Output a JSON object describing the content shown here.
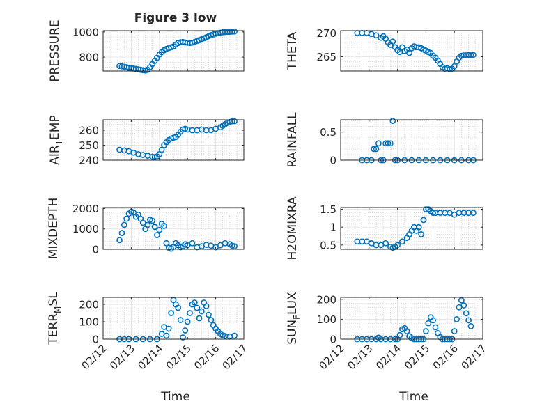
{
  "figure": {
    "title": "Figure 3 low",
    "x_label": "Time"
  },
  "style": {
    "marker_color": "#0072BD",
    "axis_color": "#262626",
    "grid_color": "#bdbdbd"
  },
  "chart_data": [
    {
      "id": "pressure",
      "type": "scatter",
      "title": "Figure 3 low",
      "xlabel": "",
      "ylabel": "PRESSURE",
      "xlim": [
        "02/12",
        "02/17"
      ],
      "ylim": [
        690,
        1010
      ],
      "yticks": [
        800,
        1000
      ],
      "ytick_labels": [
        "800",
        "1000"
      ],
      "x": [
        "02/12 14:00",
        "02/12 16:00",
        "02/12 18:00",
        "02/12 20:00",
        "02/12 22:00",
        "02/13 00:00",
        "02/13 02:00",
        "02/13 04:00",
        "02/13 06:00",
        "02/13 08:00",
        "02/13 10:00",
        "02/13 12:00",
        "02/13 14:00",
        "02/13 16:00",
        "02/13 18:00",
        "02/13 20:00",
        "02/13 22:00",
        "02/14 00:00",
        "02/14 02:00",
        "02/14 04:00",
        "02/14 06:00",
        "02/14 08:00",
        "02/14 10:00",
        "02/14 12:00",
        "02/14 14:00",
        "02/14 16:00",
        "02/14 18:00",
        "02/14 20:00",
        "02/14 22:00",
        "02/15 00:00",
        "02/15 02:00",
        "02/15 04:00",
        "02/15 06:00",
        "02/15 08:00",
        "02/15 10:00",
        "02/15 12:00",
        "02/15 14:00",
        "02/15 16:00",
        "02/15 18:00",
        "02/15 20:00",
        "02/15 22:00",
        "02/16 00:00",
        "02/16 02:00",
        "02/16 04:00",
        "02/16 06:00",
        "02/16 08:00",
        "02/16 10:00",
        "02/16 12:00",
        "02/16 14:00",
        "02/16 16:00"
      ],
      "y": [
        730,
        727,
        724,
        720,
        716,
        713,
        710,
        707,
        704,
        700,
        697,
        694,
        700,
        720,
        745,
        770,
        795,
        820,
        840,
        855,
        865,
        872,
        878,
        885,
        900,
        912,
        918,
        920,
        916,
        914,
        912,
        915,
        920,
        928,
        935,
        942,
        950,
        958,
        966,
        974,
        980,
        986,
        990,
        994,
        997,
        999,
        1000,
        1001,
        1002,
        1003
      ]
    },
    {
      "id": "theta",
      "type": "scatter",
      "xlabel": "",
      "ylabel": "THETA",
      "xlim": [
        "02/12",
        "02/17"
      ],
      "ylim": [
        262,
        270.5
      ],
      "yticks": [
        265,
        270
      ],
      "ytick_labels": [
        "265",
        "270"
      ],
      "x": [
        "02/12 14:00",
        "02/12 18:00",
        "02/12 22:00",
        "02/13 02:00",
        "02/13 06:00",
        "02/13 10:00",
        "02/13 12:00",
        "02/13 14:00",
        "02/13 16:00",
        "02/13 18:00",
        "02/13 20:00",
        "02/13 22:00",
        "02/14 00:00",
        "02/14 02:00",
        "02/14 04:00",
        "02/14 06:00",
        "02/14 08:00",
        "02/14 10:00",
        "02/14 12:00",
        "02/14 14:00",
        "02/14 16:00",
        "02/14 18:00",
        "02/14 20:00",
        "02/14 22:00",
        "02/15 00:00",
        "02/15 02:00",
        "02/15 04:00",
        "02/15 06:00",
        "02/15 08:00",
        "02/15 10:00",
        "02/15 12:00",
        "02/15 14:00",
        "02/15 16:00",
        "02/15 18:00",
        "02/15 20:00",
        "02/15 22:00",
        "02/16 00:00",
        "02/16 02:00",
        "02/16 04:00",
        "02/16 06:00",
        "02/16 08:00",
        "02/16 10:00",
        "02/16 12:00",
        "02/16 14:00",
        "02/16 16:00"
      ],
      "y": [
        270,
        270,
        270,
        269.8,
        269.5,
        269,
        269.3,
        268.8,
        268,
        267.5,
        268.2,
        267,
        266.4,
        266,
        267,
        266.2,
        266.5,
        265.8,
        266.8,
        267.2,
        267,
        267,
        266.8,
        266.5,
        266.3,
        266,
        265.8,
        265.2,
        264.8,
        264.2,
        263.5,
        262.8,
        262.5,
        262.6,
        262.4,
        262.5,
        263,
        264,
        264.8,
        265.2,
        265.3,
        265.3,
        265.4,
        265.4,
        265.4
      ]
    },
    {
      "id": "air_temp",
      "type": "scatter",
      "xlabel": "",
      "ylabel": "AIR_TEMP",
      "xlim": [
        "02/12",
        "02/17"
      ],
      "ylim": [
        240,
        267
      ],
      "yticks": [
        240,
        250,
        260
      ],
      "ytick_labels": [
        "240",
        "250",
        "260"
      ],
      "x": [
        "02/12 14:00",
        "02/12 18:00",
        "02/12 22:00",
        "02/13 02:00",
        "02/13 06:00",
        "02/13 10:00",
        "02/13 14:00",
        "02/13 18:00",
        "02/13 20:00",
        "02/13 22:00",
        "02/14 00:00",
        "02/14 02:00",
        "02/14 04:00",
        "02/14 06:00",
        "02/14 08:00",
        "02/14 10:00",
        "02/14 12:00",
        "02/14 14:00",
        "02/14 16:00",
        "02/14 18:00",
        "02/14 20:00",
        "02/14 22:00",
        "02/15 00:00",
        "02/15 04:00",
        "02/15 08:00",
        "02/15 12:00",
        "02/15 16:00",
        "02/15 20:00",
        "02/16 00:00",
        "02/16 04:00",
        "02/16 06:00",
        "02/16 08:00",
        "02/16 10:00",
        "02/16 12:00",
        "02/16 14:00",
        "02/16 16:00"
      ],
      "y": [
        247,
        246.5,
        246,
        245,
        244,
        243.5,
        243,
        242.3,
        242,
        242.5,
        244,
        247,
        250,
        252,
        253.5,
        254.5,
        255,
        255.5,
        257,
        259,
        260.5,
        261,
        260.5,
        260,
        260,
        260.5,
        260,
        260,
        261,
        262,
        263,
        264,
        265,
        265.5,
        266,
        266
      ]
    },
    {
      "id": "rainfall",
      "type": "scatter",
      "xlabel": "",
      "ylabel": "RAINFALL",
      "xlim": [
        "02/12",
        "02/17"
      ],
      "ylim": [
        0,
        0.72
      ],
      "yticks": [
        0,
        0.5
      ],
      "ytick_labels": [
        "0",
        "0.5"
      ],
      "x": [
        "02/12 18:00",
        "02/12 22:00",
        "02/13 02:00",
        "02/13 04:00",
        "02/13 06:00",
        "02/13 08:00",
        "02/13 10:00",
        "02/13 12:00",
        "02/13 14:00",
        "02/13 16:00",
        "02/13 18:00",
        "02/13 20:00",
        "02/13 22:00",
        "02/14 00:00",
        "02/14 06:00",
        "02/14 12:00",
        "02/14 18:00",
        "02/15 00:00",
        "02/15 06:00",
        "02/15 12:00",
        "02/15 18:00",
        "02/16 00:00",
        "02/16 06:00",
        "02/16 12:00",
        "02/16 16:00"
      ],
      "y": [
        0,
        0,
        0,
        0.2,
        0.2,
        0.3,
        0,
        0,
        0.3,
        0.3,
        0.3,
        0.7,
        0,
        0,
        0,
        0,
        0,
        0,
        0,
        0,
        0,
        0,
        0,
        0,
        0
      ]
    },
    {
      "id": "mixdepth",
      "type": "scatter",
      "xlabel": "",
      "ylabel": "MIXDEPTH",
      "xlim": [
        "02/12",
        "02/17"
      ],
      "ylim": [
        0,
        2050
      ],
      "yticks": [
        0,
        1000,
        2000
      ],
      "ytick_labels": [
        "0",
        "1000",
        "2000"
      ],
      "x": [
        "02/12 14:00",
        "02/12 16:00",
        "02/12 18:00",
        "02/12 20:00",
        "02/12 22:00",
        "02/13 00:00",
        "02/13 02:00",
        "02/13 04:00",
        "02/13 06:00",
        "02/13 08:00",
        "02/13 10:00",
        "02/13 12:00",
        "02/13 14:00",
        "02/13 16:00",
        "02/13 18:00",
        "02/13 20:00",
        "02/13 22:00",
        "02/14 00:00",
        "02/14 02:00",
        "02/14 04:00",
        "02/14 06:00",
        "02/14 08:00",
        "02/14 10:00",
        "02/14 12:00",
        "02/14 14:00",
        "02/14 16:00",
        "02/14 18:00",
        "02/14 20:00",
        "02/14 22:00",
        "02/15 00:00",
        "02/15 04:00",
        "02/15 08:00",
        "02/15 12:00",
        "02/15 16:00",
        "02/15 20:00",
        "02/16 00:00",
        "02/16 04:00",
        "02/16 08:00",
        "02/16 12:00",
        "02/16 14:00",
        "02/16 16:00"
      ],
      "y": [
        450,
        800,
        1200,
        1500,
        1750,
        1850,
        1800,
        1600,
        1700,
        1500,
        1300,
        1000,
        1200,
        1450,
        1400,
        1100,
        700,
        950,
        1250,
        1150,
        300,
        80,
        30,
        120,
        300,
        200,
        100,
        150,
        250,
        200,
        300,
        100,
        150,
        220,
        180,
        100,
        200,
        300,
        250,
        180,
        150
      ]
    },
    {
      "id": "h2omixra",
      "type": "scatter",
      "xlabel": "",
      "ylabel": "H2OMIXRA",
      "xlim": [
        "02/12",
        "02/17"
      ],
      "ylim": [
        0.38,
        1.55
      ],
      "yticks": [
        0.5,
        1,
        1.5
      ],
      "ytick_labels": [
        "0.5",
        "1",
        "1.5"
      ],
      "x": [
        "02/12 14:00",
        "02/12 18:00",
        "02/12 22:00",
        "02/13 02:00",
        "02/13 06:00",
        "02/13 10:00",
        "02/13 14:00",
        "02/13 18:00",
        "02/13 20:00",
        "02/13 22:00",
        "02/14 00:00",
        "02/14 04:00",
        "02/14 08:00",
        "02/14 10:00",
        "02/14 12:00",
        "02/14 14:00",
        "02/14 16:00",
        "02/14 18:00",
        "02/14 20:00",
        "02/14 22:00",
        "02/15 00:00",
        "02/15 02:00",
        "02/15 04:00",
        "02/15 06:00",
        "02/15 08:00",
        "02/15 12:00",
        "02/15 16:00",
        "02/15 20:00",
        "02/16 00:00",
        "02/16 04:00",
        "02/16 08:00",
        "02/16 12:00",
        "02/16 16:00"
      ],
      "y": [
        0.6,
        0.6,
        0.6,
        0.55,
        0.5,
        0.5,
        0.55,
        0.45,
        0.42,
        0.45,
        0.5,
        0.6,
        0.7,
        0.8,
        0.9,
        1.0,
        0.9,
        1.0,
        0.8,
        1.2,
        1.5,
        1.5,
        1.45,
        1.4,
        1.4,
        1.4,
        1.4,
        1.4,
        1.35,
        1.4,
        1.4,
        1.4,
        1.4
      ]
    },
    {
      "id": "terr_msl",
      "type": "scatter",
      "xlabel": "Time",
      "ylabel": "TERR_MSL",
      "xlim": [
        "02/12",
        "02/17"
      ],
      "ylim": [
        0,
        240
      ],
      "yticks": [
        0,
        100,
        200
      ],
      "ytick_labels": [
        "0",
        "100",
        "200"
      ],
      "xticks": [
        "02/12",
        "02/13",
        "02/14",
        "02/15",
        "02/16",
        "02/17"
      ],
      "x": [
        "02/12 14:00",
        "02/12 18:00",
        "02/12 22:00",
        "02/13 04:00",
        "02/13 10:00",
        "02/13 16:00",
        "02/13 22:00",
        "02/14 02:00",
        "02/14 04:00",
        "02/14 06:00",
        "02/14 08:00",
        "02/14 10:00",
        "02/14 12:00",
        "02/14 14:00",
        "02/14 16:00",
        "02/14 18:00",
        "02/14 20:00",
        "02/14 22:00",
        "02/15 00:00",
        "02/15 02:00",
        "02/15 04:00",
        "02/15 06:00",
        "02/15 08:00",
        "02/15 10:00",
        "02/15 12:00",
        "02/15 14:00",
        "02/15 16:00",
        "02/15 18:00",
        "02/15 20:00",
        "02/15 22:00",
        "02/16 00:00",
        "02/16 02:00",
        "02/16 04:00",
        "02/16 06:00",
        "02/16 08:00",
        "02/16 12:00",
        "02/16 16:00"
      ],
      "y": [
        0,
        0,
        0,
        0,
        0,
        0,
        0,
        30,
        70,
        20,
        60,
        150,
        225,
        200,
        180,
        110,
        10,
        50,
        100,
        150,
        200,
        210,
        180,
        120,
        160,
        210,
        190,
        140,
        110,
        80,
        60,
        45,
        30,
        22,
        18,
        15,
        20
      ]
    },
    {
      "id": "sun_flux",
      "type": "scatter",
      "xlabel": "Time",
      "ylabel": "SUN_FLUX",
      "xlim": [
        "02/12",
        "02/17"
      ],
      "ylim": [
        0,
        210
      ],
      "yticks": [
        0,
        100,
        200
      ],
      "ytick_labels": [
        "0",
        "100",
        "200"
      ],
      "xticks": [
        "02/12",
        "02/13",
        "02/14",
        "02/15",
        "02/16",
        "02/17"
      ],
      "x": [
        "02/12 14:00",
        "02/12 18:00",
        "02/12 22:00",
        "02/13 02:00",
        "02/13 06:00",
        "02/13 08:00",
        "02/13 10:00",
        "02/13 14:00",
        "02/13 18:00",
        "02/13 22:00",
        "02/14 00:00",
        "02/14 02:00",
        "02/14 04:00",
        "02/14 06:00",
        "02/14 08:00",
        "02/14 10:00",
        "02/14 12:00",
        "02/14 14:00",
        "02/14 16:00",
        "02/14 18:00",
        "02/14 20:00",
        "02/14 22:00",
        "02/15 00:00",
        "02/15 02:00",
        "02/15 04:00",
        "02/15 06:00",
        "02/15 08:00",
        "02/15 10:00",
        "02/15 12:00",
        "02/15 14:00",
        "02/15 16:00",
        "02/15 18:00",
        "02/15 20:00",
        "02/15 22:00",
        "02/16 00:00",
        "02/16 02:00",
        "02/16 04:00",
        "02/16 06:00",
        "02/16 08:00",
        "02/16 10:00",
        "02/16 12:00",
        "02/16 14:00"
      ],
      "y": [
        0,
        0,
        0,
        0,
        0,
        8,
        0,
        0,
        0,
        0,
        0,
        20,
        50,
        55,
        40,
        15,
        5,
        0,
        0,
        0,
        0,
        0,
        40,
        80,
        110,
        95,
        60,
        30,
        10,
        0,
        0,
        0,
        0,
        0,
        40,
        100,
        160,
        195,
        170,
        130,
        95,
        65
      ]
    }
  ]
}
